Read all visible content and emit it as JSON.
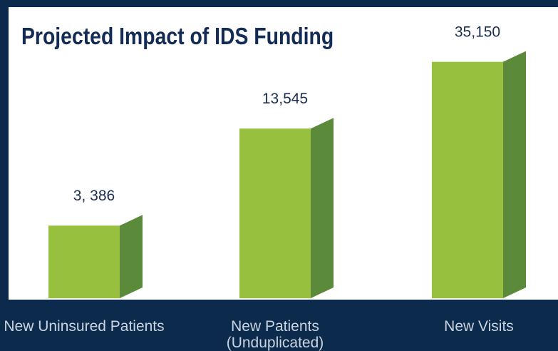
{
  "chart_data": {
    "type": "bar3d",
    "title": "Projected Impact of IDS Funding",
    "categories": [
      "New Uninsured Patients",
      "New Patients\n(Unduplicated)",
      "New Visits"
    ],
    "values": [
      3386,
      13545,
      35150
    ],
    "value_labels": [
      "3, 386",
      "13,545",
      "35,150"
    ],
    "color": "#96c03e",
    "side_color": "#5b8a3a",
    "log_scale": true,
    "ylim": [
      1200,
      40000
    ]
  }
}
